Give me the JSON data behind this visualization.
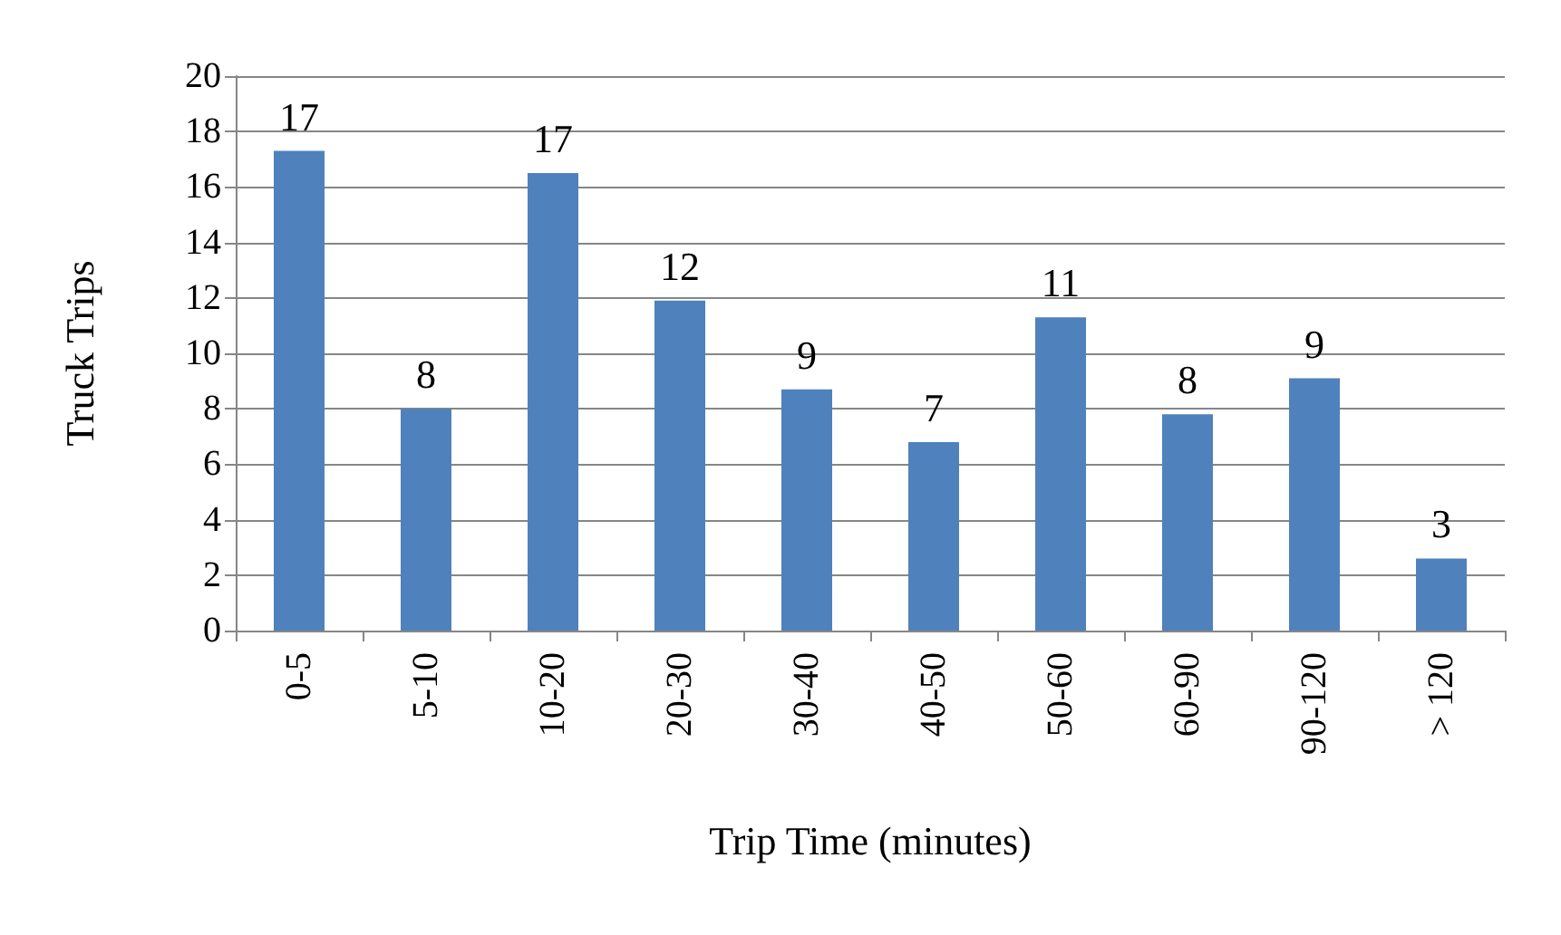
{
  "chart_data": {
    "type": "bar",
    "xlabel": "Trip Time (minutes)",
    "ylabel": "Truck Trips",
    "categories": [
      "0-5",
      "5-10",
      "10-20",
      "20-30",
      "30-40",
      "40-50",
      "50-60",
      "60-90",
      "90-120",
      "> 120"
    ],
    "values": [
      17.3,
      8.0,
      16.5,
      11.9,
      8.7,
      6.8,
      11.3,
      7.8,
      9.1,
      2.6
    ],
    "value_labels": [
      "17",
      "8",
      "17",
      "12",
      "9",
      "7",
      "11",
      "8",
      "9",
      "3"
    ],
    "color": "#4f81bd",
    "ylim": [
      0,
      20
    ],
    "yticks": [
      0,
      2,
      4,
      6,
      8,
      10,
      12,
      14,
      16,
      18,
      20
    ],
    "grid": "y"
  }
}
